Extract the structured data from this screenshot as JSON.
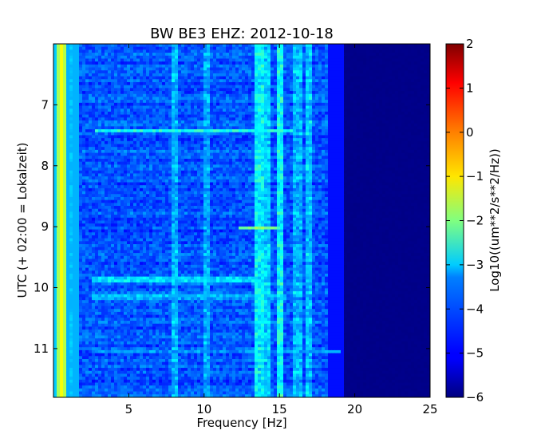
{
  "chart_data": {
    "type": "heatmap",
    "title": "BW BE3 EHZ: 2012-10-18",
    "xlabel": "Frequency [Hz]",
    "ylabel": "UTC (+ 02:00 = Lokalzeit)",
    "colorbar_label": "Log10((um**2/s**2/Hz))",
    "xlim": [
      0,
      25
    ],
    "ylim": [
      6.0,
      11.8
    ],
    "y_inverted": true,
    "x_ticks": [
      "5",
      "10",
      "15",
      "20",
      "25"
    ],
    "y_ticks": [
      "7",
      "8",
      "9",
      "10",
      "11"
    ],
    "colorbar_range": [
      -6,
      2
    ],
    "colorbar_ticks": [
      "2",
      "1",
      "0",
      "−1",
      "−2",
      "−3",
      "−4",
      "−5",
      "−6"
    ],
    "colormap": "jet",
    "noise_floor_start_hz": 19.2,
    "bands": [
      {
        "freq_hz": 0.5,
        "level": -1.0
      },
      {
        "freq_hz": 1.0,
        "level": -3.5
      },
      {
        "freq_hz": 8.0,
        "level": -3.6
      },
      {
        "freq_hz": 10.2,
        "level": -3.7
      },
      {
        "freq_hz": 13.7,
        "level": -3.1
      },
      {
        "freq_hz": 14.1,
        "level": -3.4
      },
      {
        "freq_hz": 15.0,
        "level": -3.0
      },
      {
        "freq_hz": 16.2,
        "level": -3.6
      },
      {
        "freq_hz": 17.0,
        "level": -3.5
      }
    ],
    "events": [
      {
        "time_utc": 7.43,
        "freq_from": 2.8,
        "freq_to": 15.8,
        "level": -2.8
      },
      {
        "time_utc": 9.02,
        "freq_from": 12.2,
        "freq_to": 14.8,
        "level": -2.0
      },
      {
        "time_utc": 9.87,
        "freq_from": 2.5,
        "freq_to": 13.5,
        "level": -3.2
      },
      {
        "time_utc": 10.15,
        "freq_from": 2.5,
        "freq_to": 15.5,
        "level": -3.5
      },
      {
        "time_utc": 11.05,
        "freq_from": 2.5,
        "freq_to": 19.0,
        "level": -3.6
      }
    ]
  }
}
